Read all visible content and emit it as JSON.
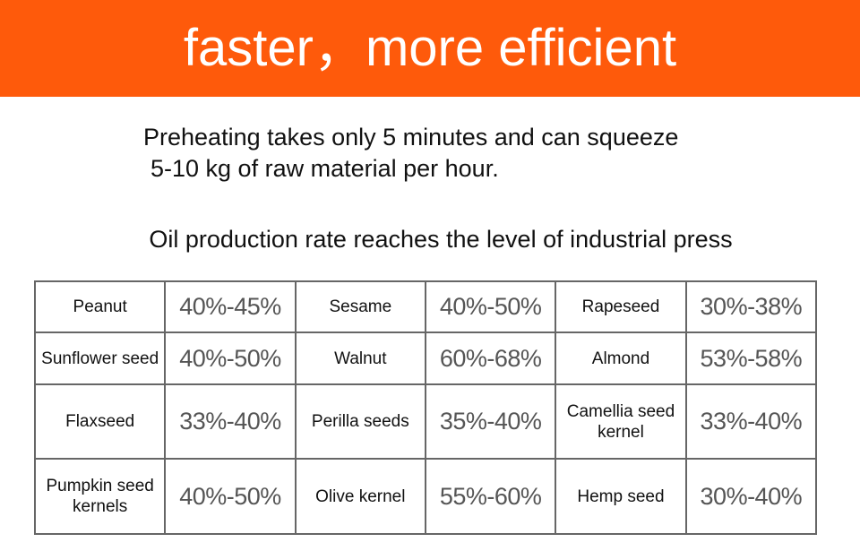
{
  "header": {
    "title": "faster，more efficient"
  },
  "intro": {
    "lines": [
      "Preheating takes only 5 minutes and can squeeze",
      "5-10 kg of raw material per hour."
    ]
  },
  "subtitle": "Oil production rate reaches the level of industrial press",
  "table": {
    "rows": [
      [
        "Peanut",
        "40%-45%",
        "Sesame",
        "40%-50%",
        "Rapeseed",
        "30%-38%"
      ],
      [
        "Sunflower seed",
        "40%-50%",
        "Walnut",
        "60%-68%",
        "Almond",
        "53%-58%"
      ],
      [
        "Flaxseed",
        "33%-40%",
        "Perilla seeds",
        "35%-40%",
        "Camellia seed kernel",
        "33%-40%"
      ],
      [
        "Pumpkin seed kernels",
        "40%-50%",
        "Olive kernel",
        "55%-60%",
        "Hemp seed",
        "30%-40%"
      ]
    ]
  }
}
